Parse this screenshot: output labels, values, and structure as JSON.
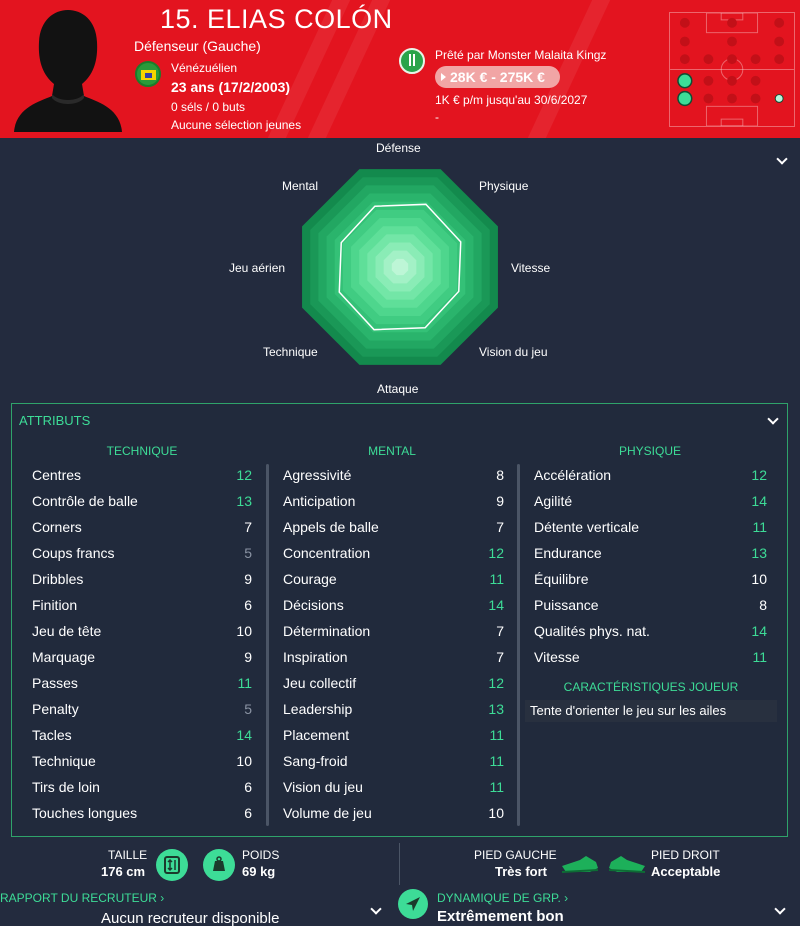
{
  "header": {
    "name": "15. ELIAS COLÓN",
    "position": "Défenseur (Gauche)",
    "nationality": "Vénézuélien",
    "age": "23 ans (17/2/2003)",
    "caps": "0 séls / 0 buts",
    "youth_caps": "Aucune sélection jeunes",
    "loan": "Prêté par Monster Malaita Kingz",
    "value": "28K € - 275K €",
    "wage": "1K € p/m jusqu'au 30/6/2027",
    "dash": "-",
    "accent_color": "#e3141f"
  },
  "radar": {
    "labels": [
      "Défense",
      "Physique",
      "Vitesse",
      "Vision du jeu",
      "Attaque",
      "Technique",
      "Jeu aérien",
      "Mental"
    ]
  },
  "attributes": {
    "title": "ATTRIBUTS",
    "technique": {
      "heading": "TECHNIQUE",
      "rows": [
        {
          "name": "Centres",
          "value": "12"
        },
        {
          "name": "Contrôle de balle",
          "value": "13"
        },
        {
          "name": "Corners",
          "value": "7"
        },
        {
          "name": "Coups francs",
          "value": "5"
        },
        {
          "name": "Dribbles",
          "value": "9"
        },
        {
          "name": "Finition",
          "value": "6"
        },
        {
          "name": "Jeu de tête",
          "value": "10"
        },
        {
          "name": "Marquage",
          "value": "9"
        },
        {
          "name": "Passes",
          "value": "11"
        },
        {
          "name": "Penalty",
          "value": "5"
        },
        {
          "name": "Tacles",
          "value": "14"
        },
        {
          "name": "Technique",
          "value": "10"
        },
        {
          "name": "Tirs de loin",
          "value": "6"
        },
        {
          "name": "Touches longues",
          "value": "6"
        }
      ]
    },
    "mental": {
      "heading": "MENTAL",
      "rows": [
        {
          "name": "Agressivité",
          "value": "8"
        },
        {
          "name": "Anticipation",
          "value": "9"
        },
        {
          "name": "Appels de balle",
          "value": "7"
        },
        {
          "name": "Concentration",
          "value": "12"
        },
        {
          "name": "Courage",
          "value": "11"
        },
        {
          "name": "Décisions",
          "value": "14"
        },
        {
          "name": "Détermination",
          "value": "7"
        },
        {
          "name": "Inspiration",
          "value": "7"
        },
        {
          "name": "Jeu collectif",
          "value": "12"
        },
        {
          "name": "Leadership",
          "value": "13"
        },
        {
          "name": "Placement",
          "value": "11"
        },
        {
          "name": "Sang-froid",
          "value": "11"
        },
        {
          "name": "Vision du jeu",
          "value": "11"
        },
        {
          "name": "Volume de jeu",
          "value": "10"
        }
      ]
    },
    "physique": {
      "heading": "PHYSIQUE",
      "rows": [
        {
          "name": "Accélération",
          "value": "12"
        },
        {
          "name": "Agilité",
          "value": "14"
        },
        {
          "name": "Détente verticale",
          "value": "11"
        },
        {
          "name": "Endurance",
          "value": "13"
        },
        {
          "name": "Équilibre",
          "value": "10"
        },
        {
          "name": "Puissance",
          "value": "8"
        },
        {
          "name": "Qualités phys. nat.",
          "value": "14"
        },
        {
          "name": "Vitesse",
          "value": "11"
        }
      ]
    },
    "traits_heading": "CARACTÉRISTIQUES JOUEUR",
    "traits": [
      "Tente d'orienter le jeu sur les ailes"
    ]
  },
  "colors": {
    "high": "#3ddc97",
    "mid": "#ffffff",
    "low": "#8a93a3"
  },
  "footer": {
    "height_label": "TAILLE",
    "height_value": "176 cm",
    "weight_label": "POIDS",
    "weight_value": "69 kg",
    "left_foot_label": "PIED GAUCHE",
    "left_foot_value": "Très fort",
    "right_foot_label": "PIED DROIT",
    "right_foot_value": "Acceptable",
    "scout_link": "RAPPORT DU RECRUTEUR ›",
    "scout_value": "Aucun recruteur disponible",
    "dynamics_link": "DYNAMIQUE DE GRP. ›",
    "dynamics_value": "Extrêmement bon"
  }
}
